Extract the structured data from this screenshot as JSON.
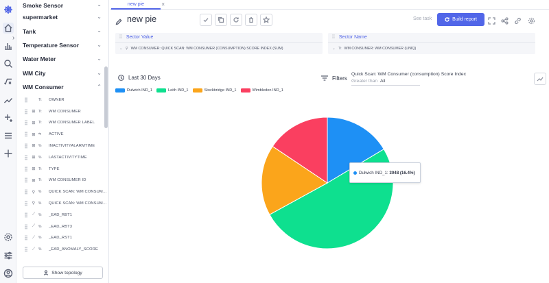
{
  "colors": {
    "accent": "#5166e8",
    "series": [
      "#1e90f5",
      "#0ee08f",
      "#fba51b",
      "#fa3f60"
    ]
  },
  "rail": {
    "icons": [
      "app-logo-icon",
      "home-icon",
      "bar-chart-icon",
      "search-analytics-icon",
      "formula-icon",
      "trend-icon",
      "sparkle-icon",
      "list-icon",
      "plus-icon",
      "settings-icon",
      "sliders-icon",
      "user-icon"
    ]
  },
  "sidebar": {
    "groups_top": [
      {
        "label": "Smoke Sensor"
      },
      {
        "label": "supermarket"
      },
      {
        "label": "Tank"
      },
      {
        "label": "Temperature Sensor"
      },
      {
        "label": "Water Meter"
      },
      {
        "label": "WM City"
      },
      {
        "label": "WM Consumer"
      }
    ],
    "fields": [
      {
        "label": "OWNER",
        "ic1": "",
        "ic2": "Tt"
      },
      {
        "label": "WM CONSUMER",
        "ic1": "⊞",
        "ic2": "Tt"
      },
      {
        "label": "WM CONSUMER LABEL",
        "ic1": "⊞",
        "ic2": "Tt"
      },
      {
        "label": "ACTIVE",
        "ic1": "⊞",
        "ic2": "⇆"
      },
      {
        "label": "INACTIVITYALARMTIME",
        "ic1": "⊞",
        "ic2": "%"
      },
      {
        "label": "LASTACTIVITYTIME",
        "ic1": "⊞",
        "ic2": "%"
      },
      {
        "label": "TYPE",
        "ic1": "⊞",
        "ic2": "Tt"
      },
      {
        "label": "WM CONSUMER ID",
        "ic1": "⊞",
        "ic2": "Tt"
      },
      {
        "label": "QUICK SCAN: WM CONSUME...",
        "ic1": "⚲",
        "ic2": "%"
      },
      {
        "label": "QUICK SCAN: WM CONSUME...",
        "ic1": "⚲",
        "ic2": "%"
      },
      {
        "label": "_EAD_RBT1",
        "ic1": "⟋",
        "ic2": "%"
      },
      {
        "label": "_EAD_RBT3",
        "ic1": "⟋",
        "ic2": "%"
      },
      {
        "label": "_EAD_RST1",
        "ic1": "⟋",
        "ic2": "%"
      },
      {
        "label": "_EAD_ANOMALY_SCORE",
        "ic1": "⟋",
        "ic2": "%"
      }
    ],
    "show_topology": "Show topology"
  },
  "tab": {
    "label": "new pie"
  },
  "header": {
    "title": "new pie",
    "see_task": "See task",
    "build_report": "Build report"
  },
  "wells": {
    "sector_value": {
      "title": "Sector Value",
      "item": "WM CONSUMER: QUICK SCAN: WM CONSUMER (CONSUMPTION) SCORE INDEX (SUM)"
    },
    "sector_name": {
      "title": "Sector Name",
      "item": "WM CONSUMER: WM CONSUMER (UNIQ)"
    }
  },
  "date_range": "Last 30 Days",
  "filters": {
    "label": "Filters",
    "field": "Quick Scan: WM Consumer (consumption) Score Index",
    "operator": "Greater than",
    "value": "All"
  },
  "tooltip": {
    "series": "Dulwich IND_1:",
    "value": "3048 (16.4%)"
  },
  "chart_data": {
    "type": "pie",
    "title": "",
    "slices": [
      {
        "label": "Dulwich IND_1",
        "value": 3048,
        "percent": 16.4
      },
      {
        "label": "Leith IND_1",
        "value": 9400,
        "percent": 50.6
      },
      {
        "label": "Stockbridge IND_1",
        "value": 3230,
        "percent": 17.4
      },
      {
        "label": "Wimbledon IND_1",
        "value": 2900,
        "percent": 15.6
      }
    ],
    "legend_placement": "top-left"
  }
}
